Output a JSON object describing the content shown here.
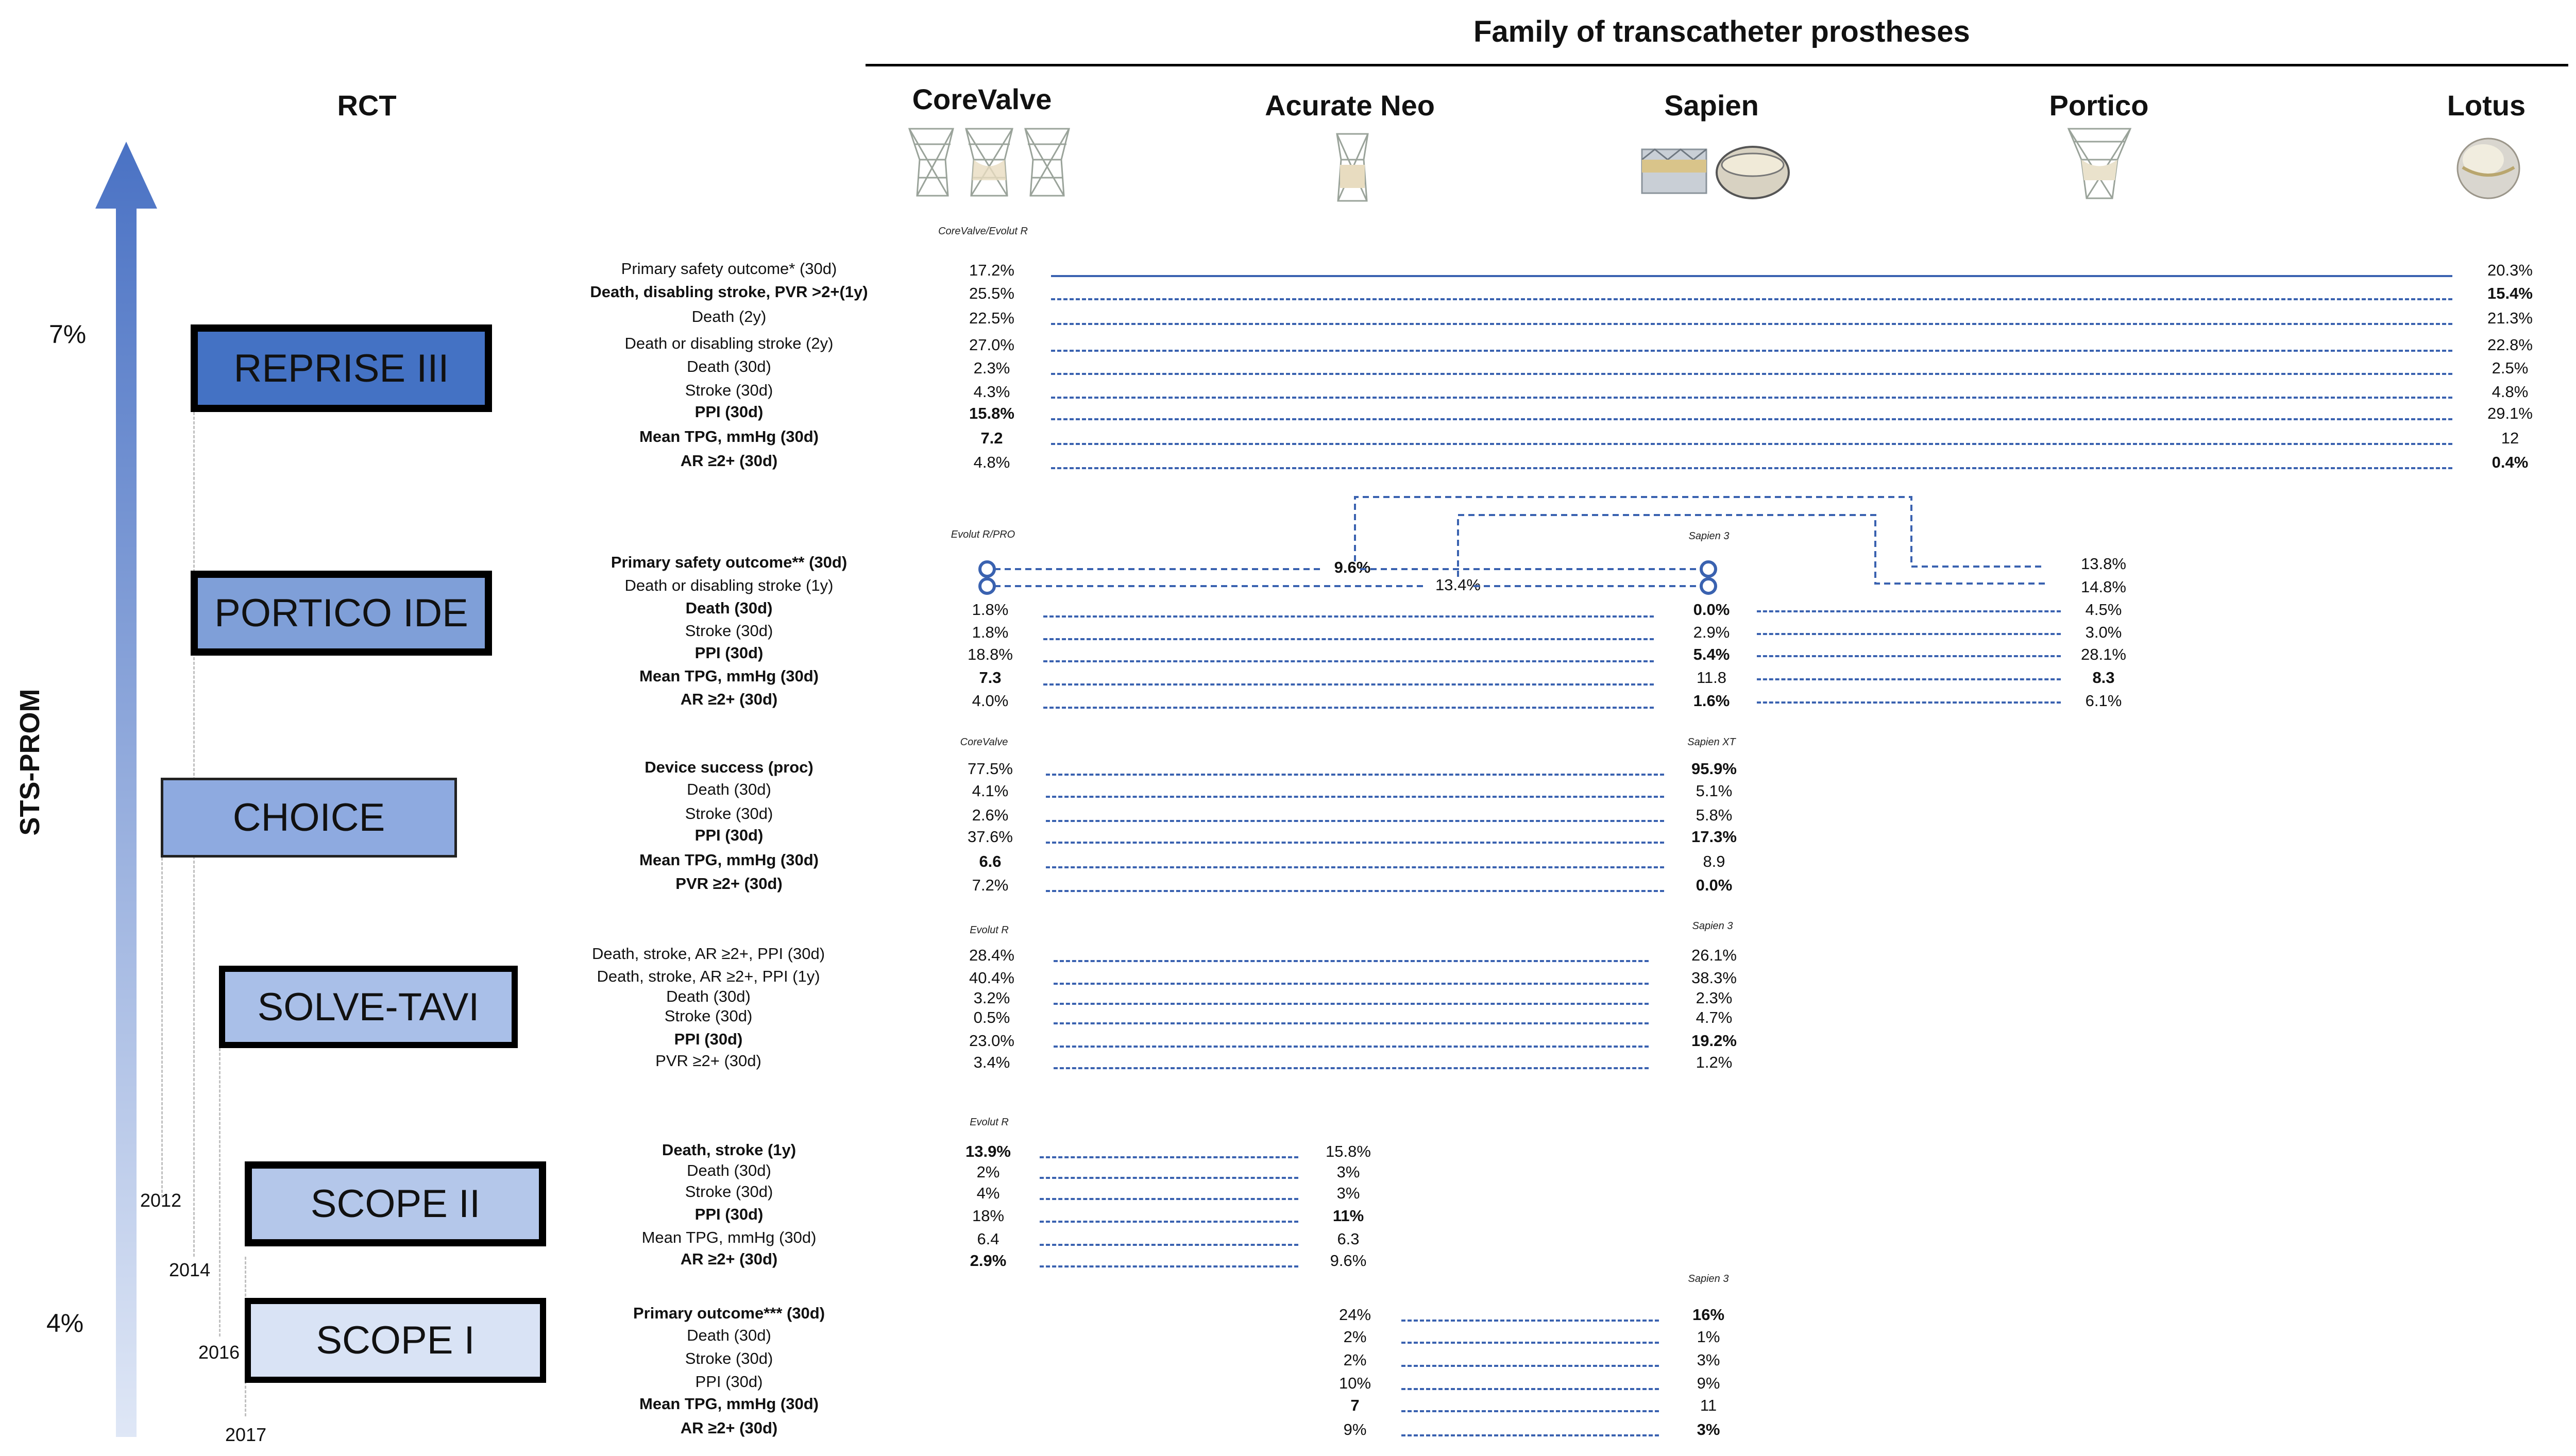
{
  "header": {
    "title": "Family of transcatheter prostheses",
    "rct": "RCT"
  },
  "valves": {
    "corevalve": "CoreValve",
    "acurate": "Acurate Neo",
    "sapien": "Sapien",
    "portico": "Portico",
    "lotus": "Lotus"
  },
  "axis": {
    "label": "STS-PROM",
    "top": "7%",
    "bottom": "4%"
  },
  "years": {
    "y2012": "2012",
    "y2014": "2014",
    "y2016": "2016",
    "y2017": "2017"
  },
  "trials": {
    "reprise": {
      "name": "REPRISE III",
      "col_left": "CoreValve/Evolut R",
      "rows": [
        {
          "label": "Primary safety outcome* (30d)",
          "left": "17.2%",
          "right": "20.3%"
        },
        {
          "label": "Death, disabling stroke, PVR >2+(1y)",
          "left": "25.5%",
          "right": "15.4%"
        },
        {
          "label": "Death (2y)",
          "left": "22.5%",
          "right": "21.3%"
        },
        {
          "label": "Death or disabling stroke (2y)",
          "left": "27.0%",
          "right": "22.8%"
        },
        {
          "label": "Death (30d)",
          "left": "2.3%",
          "right": "2.5%"
        },
        {
          "label": "Stroke (30d)",
          "left": "4.3%",
          "right": "4.8%"
        },
        {
          "label": "PPI (30d)",
          "left": "15.8%",
          "right": "29.1%"
        },
        {
          "label": "Mean TPG, mmHg (30d)",
          "left": "7.2",
          "right": "12"
        },
        {
          "label": "AR ≥2+ (30d)",
          "left": "4.8%",
          "right": "0.4%"
        }
      ]
    },
    "portico": {
      "name": "PORTICO IDE",
      "col_left": "Evolut R/PRO",
      "col_mid": "Sapien 3",
      "mid_values": [
        "9.6%",
        "13.4%"
      ],
      "rows": [
        {
          "label": "Primary safety outcome** (30d)",
          "left": "",
          "mid": "",
          "right": "13.8%"
        },
        {
          "label": "Death or disabling stroke (1y)",
          "left": "",
          "mid": "",
          "right": "14.8%"
        },
        {
          "label": "Death (30d)",
          "left": "1.8%",
          "mid": "0.0%",
          "right": "4.5%"
        },
        {
          "label": "Stroke (30d)",
          "left": "1.8%",
          "mid": "2.9%",
          "right": "3.0%"
        },
        {
          "label": "PPI (30d)",
          "left": "18.8%",
          "mid": "5.4%",
          "right": "28.1%"
        },
        {
          "label": "Mean TPG, mmHg (30d)",
          "left": "7.3",
          "mid": "11.8",
          "right": "8.3"
        },
        {
          "label": "AR ≥2+ (30d)",
          "left": "4.0%",
          "mid": "1.6%",
          "right": "6.1%"
        }
      ]
    },
    "choice": {
      "name": "CHOICE",
      "col_left": "CoreValve",
      "col_right": "Sapien XT",
      "rows": [
        {
          "label": "Device success (proc)",
          "left": "77.5%",
          "right": "95.9%"
        },
        {
          "label": "Death (30d)",
          "left": "4.1%",
          "right": "5.1%"
        },
        {
          "label": "Stroke (30d)",
          "left": "2.6%",
          "right": "5.8%"
        },
        {
          "label": "PPI (30d)",
          "left": "37.6%",
          "right": "17.3%"
        },
        {
          "label": "Mean TPG, mmHg (30d)",
          "left": "6.6",
          "right": "8.9"
        },
        {
          "label": "PVR ≥2+ (30d)",
          "left": "7.2%",
          "right": "0.0%"
        }
      ]
    },
    "solve": {
      "name": "SOLVE-TAVI",
      "col_left": "Evolut R",
      "col_right": "Sapien 3",
      "rows": [
        {
          "label": "Death, stroke, AR ≥2+, PPI (30d)",
          "left": "28.4%",
          "right": "26.1%"
        },
        {
          "label": "Death, stroke, AR ≥2+, PPI (1y)",
          "left": "40.4%",
          "right": "38.3%"
        },
        {
          "label": "Death (30d)",
          "left": "3.2%",
          "right": "2.3%"
        },
        {
          "label": "Stroke (30d)",
          "left": "0.5%",
          "right": "4.7%"
        },
        {
          "label": "PPI (30d)",
          "left": "23.0%",
          "right": "19.2%"
        },
        {
          "label": "PVR ≥2+ (30d)",
          "left": "3.4%",
          "right": "1.2%"
        }
      ]
    },
    "scope2": {
      "name": "SCOPE II",
      "col_left": "Evolut R",
      "rows": [
        {
          "label": "Death, stroke (1y)",
          "left": "13.9%",
          "right": "15.8%"
        },
        {
          "label": "Death (30d)",
          "left": "2%",
          "right": "3%"
        },
        {
          "label": "Stroke (30d)",
          "left": "4%",
          "right": "3%"
        },
        {
          "label": "PPI (30d)",
          "left": "18%",
          "right": "11%"
        },
        {
          "label": "Mean TPG, mmHg (30d)",
          "left": "6.4",
          "right": "6.3"
        },
        {
          "label": "AR ≥2+ (30d)",
          "left": "2.9%",
          "right": "9.6%"
        }
      ]
    },
    "scope1": {
      "name": "SCOPE I",
      "col_right": "Sapien 3",
      "rows": [
        {
          "label": "Primary outcome*** (30d)",
          "left": "24%",
          "right": "16%"
        },
        {
          "label": "Death (30d)",
          "left": "2%",
          "right": "1%"
        },
        {
          "label": "Stroke (30d)",
          "left": "2%",
          "right": "3%"
        },
        {
          "label": "PPI (30d)",
          "left": "10%",
          "right": "9%"
        },
        {
          "label": "Mean TPG, mmHg (30d)",
          "left": "7",
          "right": "11"
        },
        {
          "label": "AR ≥2+ (30d)",
          "left": "9%",
          "right": "3%"
        }
      ]
    }
  },
  "colors": {
    "arrow_top": "#4a72c4",
    "arrow_bottom": "#dfe7f6",
    "line": "#3a62b0",
    "reprise": "#4472c4",
    "portico": "#7f9fd8",
    "choice": "#8eaae0",
    "solve": "#a9bfe8",
    "scope2": "#b4c7ea",
    "scope1": "#d9e3f5"
  }
}
